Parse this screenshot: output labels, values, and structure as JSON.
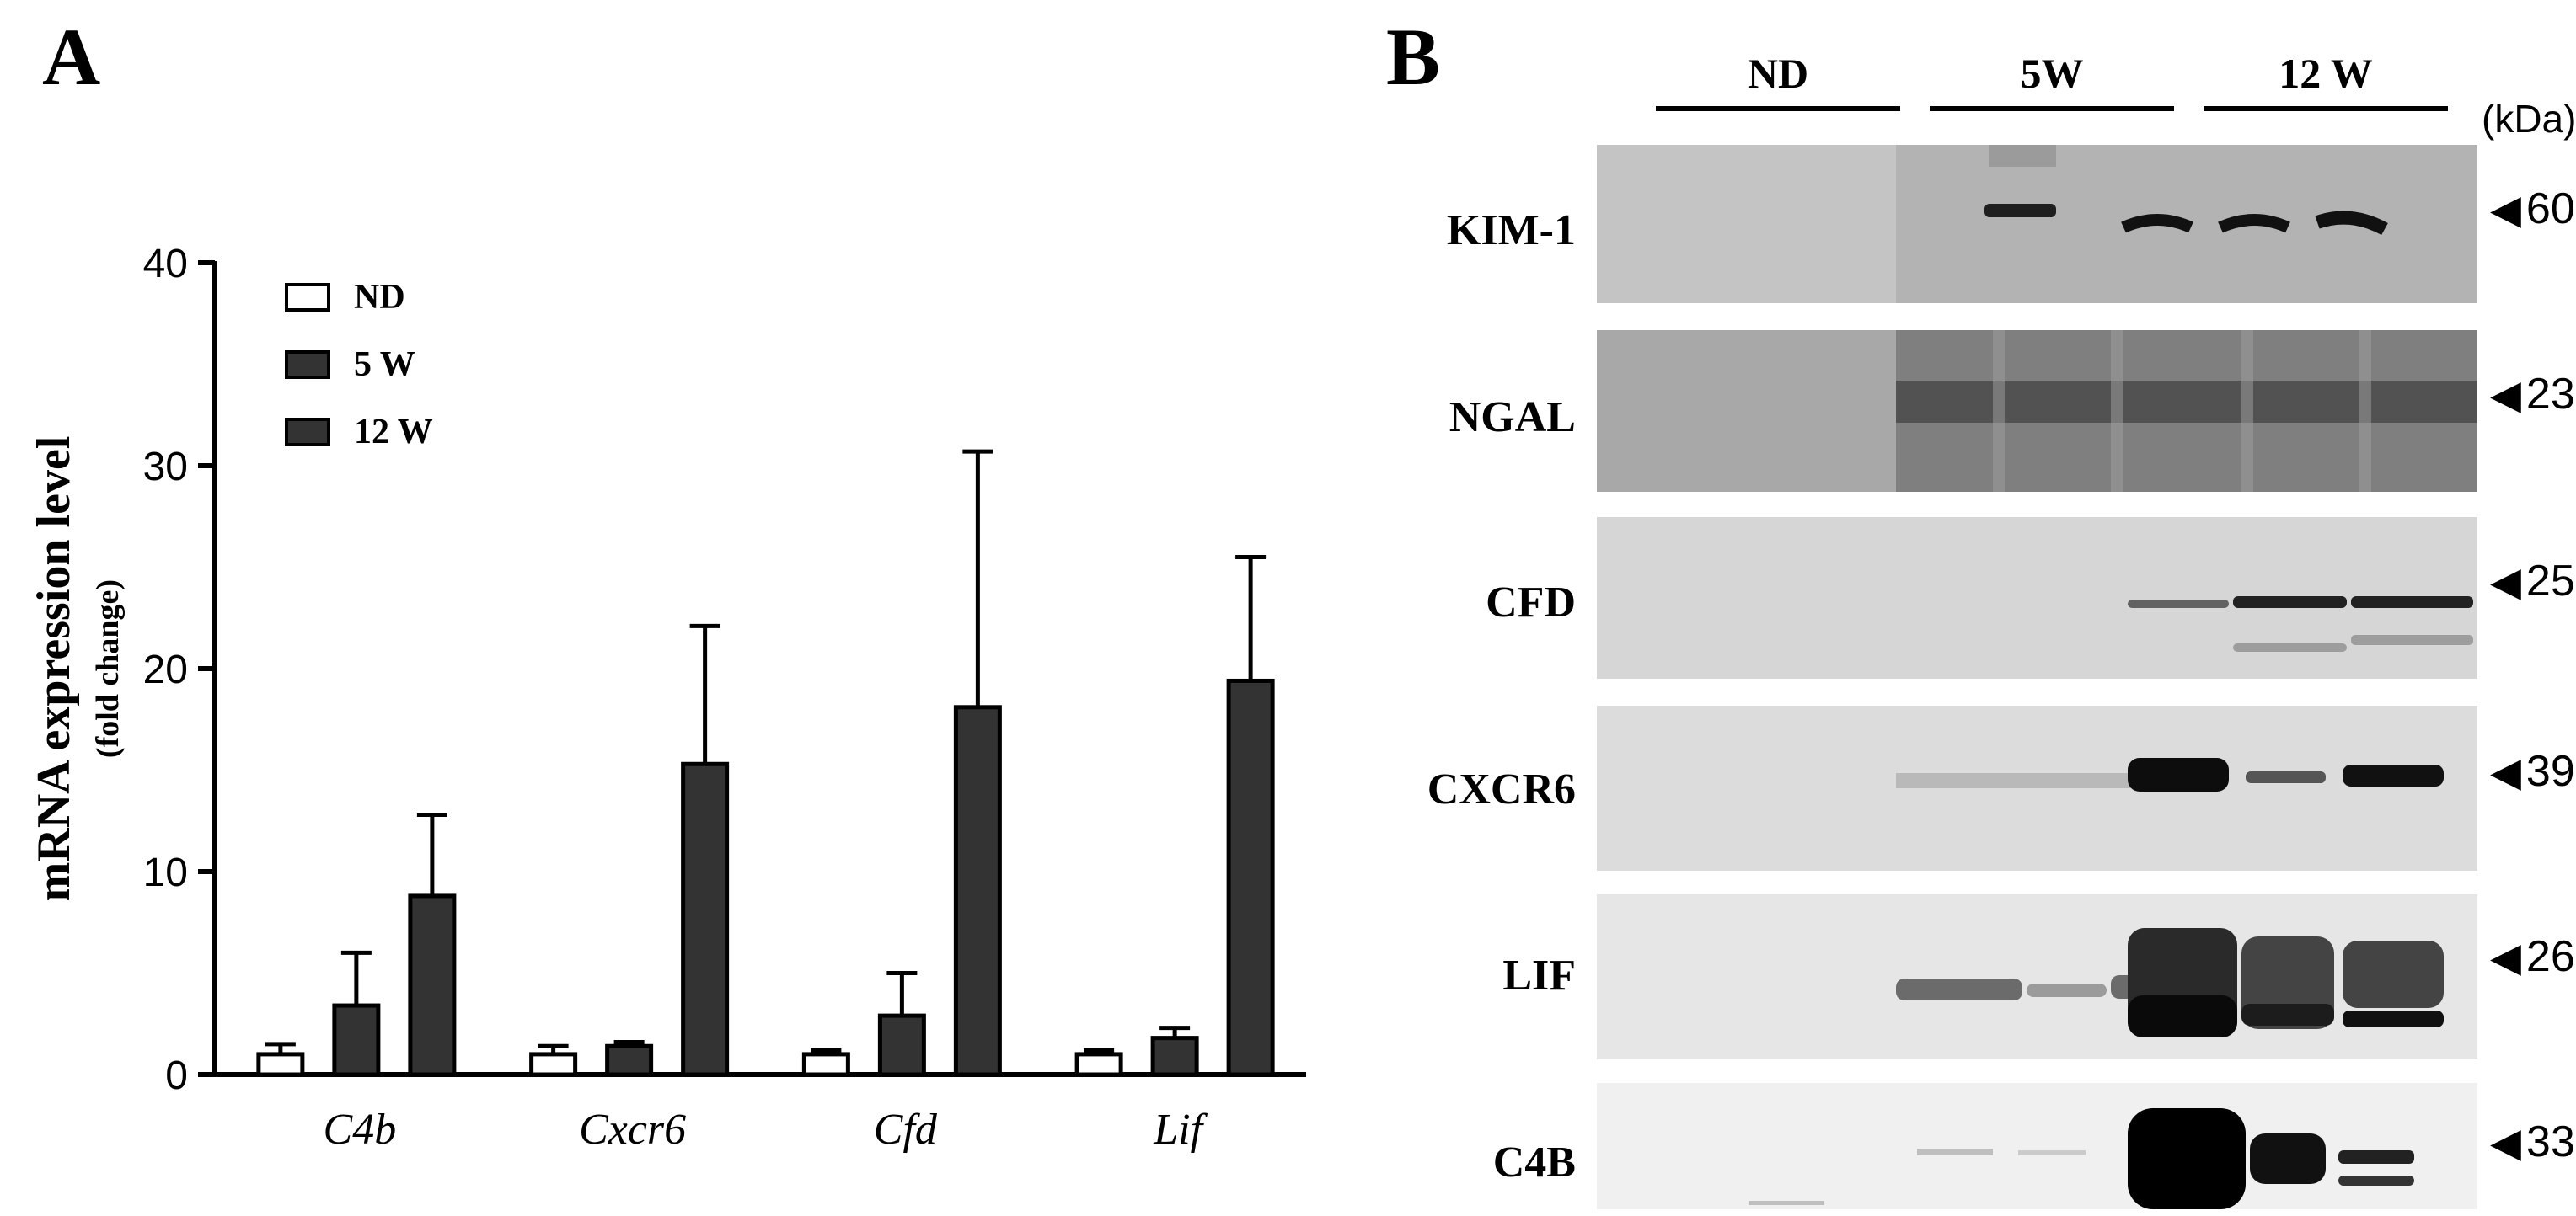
{
  "panel_a": {
    "letter": "A"
  },
  "panel_b": {
    "letter": "B",
    "groups": [
      {
        "label": "ND"
      },
      {
        "label": "5W"
      },
      {
        "label": "12 W"
      }
    ],
    "unit_label": "(kDa)",
    "blots": [
      {
        "protein": "KIM-1",
        "kda": "60"
      },
      {
        "protein": "NGAL",
        "kda": "23"
      },
      {
        "protein": "CFD",
        "kda": "25"
      },
      {
        "protein": "CXCR6",
        "kda": "39"
      },
      {
        "protein": "LIF",
        "kda": "26"
      },
      {
        "protein": "C4B",
        "kda": "33"
      }
    ]
  },
  "chart_data": {
    "type": "bar",
    "title": "",
    "xlabel": "",
    "ylabel": "mRNA expression level",
    "ylabel_sub": "(fold change)",
    "ylim": [
      0,
      40
    ],
    "yticks": [
      0,
      10,
      20,
      30,
      40
    ],
    "categories": [
      "C4b",
      "Cxcr6",
      "Cfd",
      "Lif"
    ],
    "legend_placement": "top-left",
    "series": [
      {
        "name": "ND",
        "color": "#ffffff",
        "values": [
          1.0,
          1.0,
          1.0,
          1.0
        ],
        "errors": [
          0.5,
          0.4,
          0.2,
          0.2
        ]
      },
      {
        "name": "5 W",
        "color": "#333333",
        "values": [
          3.4,
          1.4,
          2.9,
          1.8
        ],
        "errors": [
          2.6,
          0.2,
          2.1,
          0.5
        ]
      },
      {
        "name": "12 W",
        "color": "#333333",
        "values": [
          8.8,
          15.3,
          18.1,
          19.4
        ],
        "errors": [
          4.0,
          6.8,
          12.6,
          6.1
        ]
      }
    ]
  }
}
